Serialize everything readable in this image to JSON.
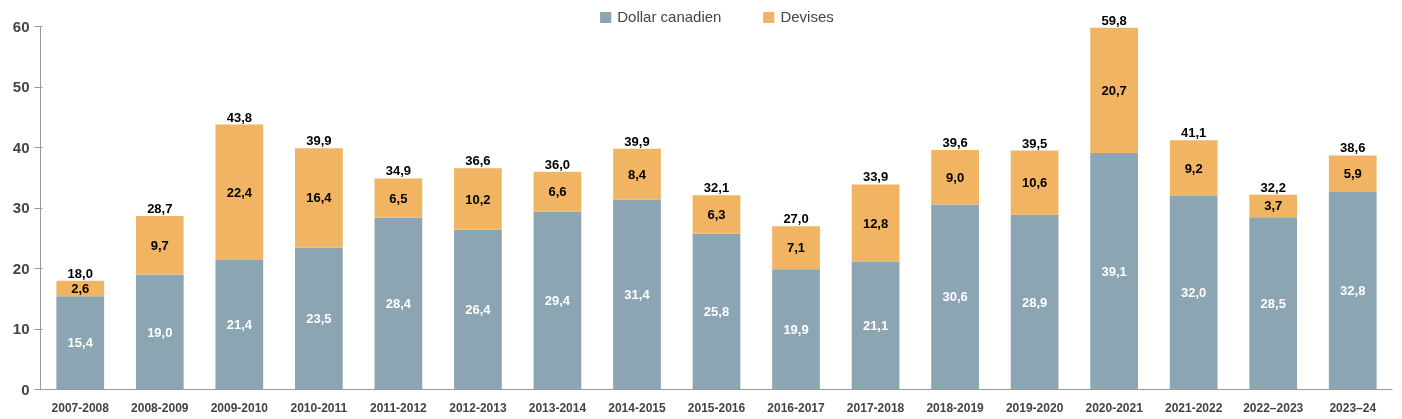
{
  "chart_data": {
    "type": "bar",
    "stacked": true,
    "categories": [
      "2007-2008",
      "2008-2009",
      "2009-2010",
      "2010-2011",
      "2011-2012",
      "2012-2013",
      "2013-2014",
      "2014-2015",
      "2015-2016",
      "2016-2017",
      "2017-2018",
      "2018-2019",
      "2019-2020",
      "2020-2021",
      "2021-2022",
      "2022–2023",
      "2023–24"
    ],
    "series": [
      {
        "name": "Dollar canadien",
        "color": "#8ba5b3",
        "values": [
          15.4,
          19.0,
          21.4,
          23.5,
          28.4,
          26.4,
          29.4,
          31.4,
          25.8,
          19.9,
          21.1,
          30.6,
          28.9,
          39.1,
          32.0,
          28.5,
          32.8
        ],
        "value_labels": [
          "15,4",
          "19,0",
          "21,4",
          "23,5",
          "28,4",
          "26,4",
          "29,4",
          "31,4",
          "25,8",
          "19,9",
          "21,1",
          "30,6",
          "28,9",
          "39,1",
          "32,0",
          "28,5",
          "32,8"
        ]
      },
      {
        "name": "Devises",
        "color": "#f0b462",
        "values": [
          2.6,
          9.7,
          22.4,
          16.4,
          6.5,
          10.2,
          6.6,
          8.4,
          6.3,
          7.1,
          12.8,
          9.0,
          10.6,
          20.7,
          9.2,
          3.7,
          5.9
        ],
        "value_labels": [
          "2,6",
          "9,7",
          "22,4",
          "16,4",
          "6,5",
          "10,2",
          "6,6",
          "8,4",
          "6,3",
          "7,1",
          "12,8",
          "9,0",
          "10,6",
          "20,7",
          "9,2",
          "3,7",
          "5,9"
        ]
      }
    ],
    "totals": [
      "18,0",
      "28,7",
      "43,8",
      "39,9",
      "34,9",
      "36,6",
      "36,0",
      "39,9",
      "32,1",
      "27,0",
      "33,9",
      "39,6",
      "39,5",
      "59,8",
      "41,1",
      "32,2",
      "38,6"
    ],
    "ylim": [
      0,
      60
    ],
    "yticks": [
      0,
      10,
      20,
      30,
      40,
      50,
      60
    ],
    "grid": false,
    "legend": "top"
  }
}
